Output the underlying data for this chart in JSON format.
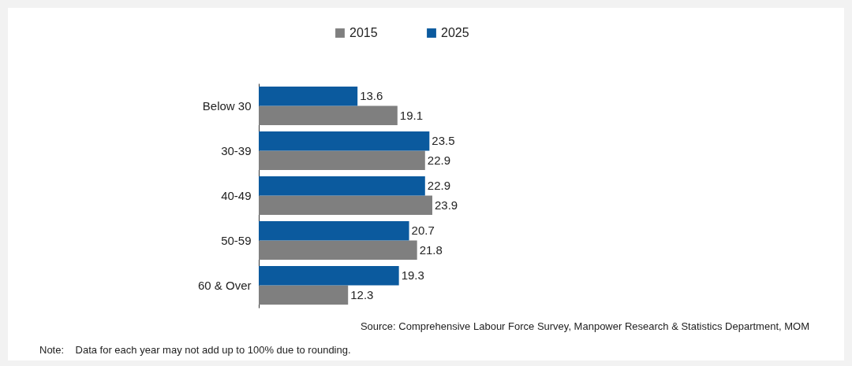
{
  "chart_data": {
    "type": "bar",
    "orientation": "horizontal",
    "categories": [
      "Below 30",
      "30-39",
      "40-49",
      "50-59",
      "60 & Over"
    ],
    "series": [
      {
        "name": "2015",
        "color": "#7f7f7f",
        "values": [
          19.1,
          22.9,
          23.9,
          21.8,
          12.3
        ]
      },
      {
        "name": "2025",
        "color": "#0b5a9e",
        "values": [
          13.6,
          23.5,
          22.9,
          20.7,
          19.3
        ]
      }
    ],
    "data_labels": true,
    "legend": "top",
    "grid": false,
    "tick_labels": "y",
    "annotations": [
      "Source: Comprehensive Labour Force Survey, Manpower Research & Statistics Department, MOM",
      "Note:    Data for each year may not add up to 100% due to rounding."
    ]
  }
}
